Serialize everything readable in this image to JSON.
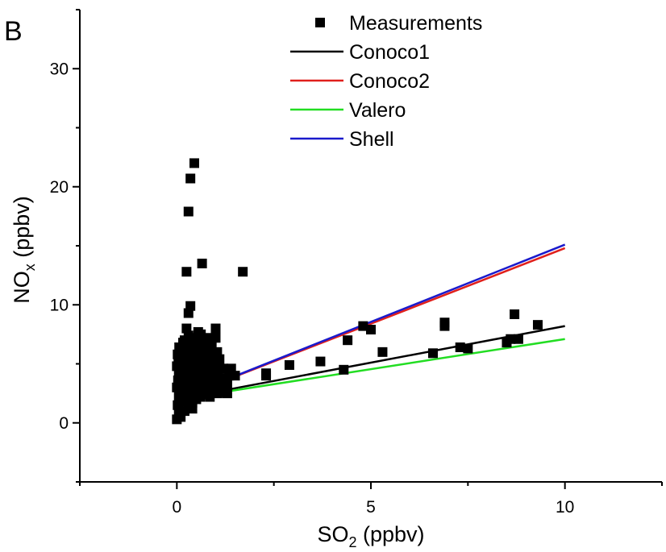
{
  "chart_data": {
    "type": "scatter",
    "panel_label": "B",
    "xlabel": {
      "main": "SO",
      "sub": "2",
      "rest": " (ppbv)"
    },
    "ylabel": {
      "main": "NO",
      "sub": "x",
      "rest": " (ppbv)"
    },
    "xlim": [
      -2.5,
      12.5
    ],
    "ylim": [
      -5,
      35
    ],
    "x_ticks": [
      0,
      5,
      10
    ],
    "x_tick_labels": [
      "0",
      "5",
      "10"
    ],
    "y_ticks": [
      0,
      10,
      20,
      30
    ],
    "y_tick_labels": [
      "0",
      "10",
      "20",
      "30"
    ],
    "legend_position": "top-center",
    "series": [
      {
        "name": "Measurements",
        "kind": "points",
        "color": "#000000",
        "points": [
          [
            0.0,
            0.3
          ],
          [
            0.02,
            1.5
          ],
          [
            0.05,
            2.2
          ],
          [
            0.0,
            3.0
          ],
          [
            0.03,
            3.6
          ],
          [
            0.05,
            4.2
          ],
          [
            0.0,
            4.8
          ],
          [
            0.04,
            5.3
          ],
          [
            0.02,
            5.8
          ],
          [
            0.06,
            6.4
          ],
          [
            0.1,
            0.5
          ],
          [
            0.12,
            1.8
          ],
          [
            0.15,
            2.6
          ],
          [
            0.1,
            3.3
          ],
          [
            0.14,
            3.9
          ],
          [
            0.1,
            4.5
          ],
          [
            0.15,
            5.0
          ],
          [
            0.12,
            5.6
          ],
          [
            0.1,
            6.2
          ],
          [
            0.16,
            6.8
          ],
          [
            0.2,
            1.0
          ],
          [
            0.22,
            2.0
          ],
          [
            0.25,
            2.8
          ],
          [
            0.2,
            3.5
          ],
          [
            0.24,
            4.1
          ],
          [
            0.2,
            4.7
          ],
          [
            0.26,
            5.4
          ],
          [
            0.22,
            6.0
          ],
          [
            0.2,
            7.0
          ],
          [
            0.25,
            8.0
          ],
          [
            0.3,
            1.4
          ],
          [
            0.32,
            2.3
          ],
          [
            0.35,
            3.0
          ],
          [
            0.3,
            3.7
          ],
          [
            0.34,
            4.4
          ],
          [
            0.3,
            5.1
          ],
          [
            0.36,
            5.7
          ],
          [
            0.32,
            6.5
          ],
          [
            0.3,
            7.4
          ],
          [
            0.35,
            2.5
          ],
          [
            0.4,
            1.7
          ],
          [
            0.42,
            2.6
          ],
          [
            0.45,
            3.3
          ],
          [
            0.4,
            4.0
          ],
          [
            0.44,
            4.6
          ],
          [
            0.4,
            5.3
          ],
          [
            0.46,
            6.0
          ],
          [
            0.42,
            6.8
          ],
          [
            0.4,
            1.2
          ],
          [
            0.45,
            3.8
          ],
          [
            0.5,
            2.0
          ],
          [
            0.52,
            2.9
          ],
          [
            0.55,
            3.6
          ],
          [
            0.5,
            4.3
          ],
          [
            0.54,
            5.0
          ],
          [
            0.5,
            5.7
          ],
          [
            0.56,
            6.4
          ],
          [
            0.52,
            7.2
          ],
          [
            0.5,
            2.4
          ],
          [
            0.55,
            4.8
          ],
          [
            0.6,
            2.2
          ],
          [
            0.62,
            3.1
          ],
          [
            0.65,
            3.8
          ],
          [
            0.6,
            4.5
          ],
          [
            0.64,
            5.2
          ],
          [
            0.6,
            6.0
          ],
          [
            0.66,
            6.7
          ],
          [
            0.62,
            7.5
          ],
          [
            0.6,
            2.8
          ],
          [
            0.65,
            4.2
          ],
          [
            0.7,
            2.4
          ],
          [
            0.72,
            3.3
          ],
          [
            0.75,
            4.0
          ],
          [
            0.7,
            4.7
          ],
          [
            0.74,
            5.4
          ],
          [
            0.7,
            6.2
          ],
          [
            0.76,
            7.0
          ],
          [
            0.72,
            3.7
          ],
          [
            0.7,
            2.6
          ],
          [
            0.75,
            5.8
          ],
          [
            0.8,
            2.5
          ],
          [
            0.82,
            3.4
          ],
          [
            0.85,
            4.1
          ],
          [
            0.8,
            4.8
          ],
          [
            0.84,
            5.6
          ],
          [
            0.8,
            6.3
          ],
          [
            0.86,
            7.2
          ],
          [
            0.82,
            3.0
          ],
          [
            0.8,
            5.2
          ],
          [
            0.85,
            2.2
          ],
          [
            0.9,
            2.7
          ],
          [
            0.92,
            3.6
          ],
          [
            0.95,
            4.3
          ],
          [
            0.9,
            5.0
          ],
          [
            0.94,
            5.8
          ],
          [
            0.9,
            6.6
          ],
          [
            0.96,
            3.2
          ],
          [
            0.92,
            4.6
          ],
          [
            0.9,
            2.9
          ],
          [
            0.95,
            5.4
          ],
          [
            1.0,
            2.8
          ],
          [
            1.02,
            3.6
          ],
          [
            1.05,
            4.4
          ],
          [
            1.0,
            5.2
          ],
          [
            1.04,
            6.0
          ],
          [
            1.0,
            7.2
          ],
          [
            1.06,
            3.4
          ],
          [
            1.02,
            4.8
          ],
          [
            1.0,
            8.0
          ],
          [
            1.05,
            2.5
          ],
          [
            1.1,
            3.0
          ],
          [
            1.15,
            3.8
          ],
          [
            1.2,
            4.6
          ],
          [
            1.1,
            5.4
          ],
          [
            1.2,
            2.6
          ],
          [
            1.3,
            3.2
          ],
          [
            1.35,
            4.0
          ],
          [
            1.4,
            4.6
          ],
          [
            1.3,
            2.5
          ],
          [
            1.25,
            3.6
          ],
          [
            0.25,
            12.8
          ],
          [
            0.3,
            17.9
          ],
          [
            0.35,
            20.7
          ],
          [
            0.45,
            22.0
          ],
          [
            0.3,
            9.3
          ],
          [
            0.35,
            9.9
          ],
          [
            0.65,
            13.5
          ],
          [
            0.55,
            7.7
          ],
          [
            1.7,
            12.8
          ],
          [
            1.5,
            4.0
          ],
          [
            2.3,
            4.0
          ],
          [
            2.3,
            4.2
          ],
          [
            2.9,
            4.9
          ],
          [
            3.7,
            5.2
          ],
          [
            4.3,
            4.5
          ],
          [
            4.4,
            7.0
          ],
          [
            4.8,
            8.2
          ],
          [
            5.0,
            7.9
          ],
          [
            5.3,
            6.0
          ],
          [
            6.6,
            5.9
          ],
          [
            6.9,
            8.2
          ],
          [
            6.9,
            8.5
          ],
          [
            7.3,
            6.4
          ],
          [
            7.5,
            6.3
          ],
          [
            8.5,
            6.8
          ],
          [
            8.6,
            7.1
          ],
          [
            8.7,
            9.2
          ],
          [
            8.8,
            7.1
          ],
          [
            9.3,
            8.3
          ],
          [
            0.05,
            1.0
          ]
        ]
      },
      {
        "name": "Conoco1",
        "kind": "line",
        "color": "#000000",
        "x": [
          0,
          10
        ],
        "y": [
          2.0,
          8.2
        ]
      },
      {
        "name": "Conoco2",
        "kind": "line",
        "color": "#e0201c",
        "x": [
          0,
          10
        ],
        "y": [
          2.0,
          14.8
        ]
      },
      {
        "name": "Valero",
        "kind": "line",
        "color": "#22dd22",
        "x": [
          0,
          10
        ],
        "y": [
          2.0,
          7.1
        ]
      },
      {
        "name": "Shell",
        "kind": "line",
        "color": "#1a1acc",
        "x": [
          0,
          10
        ],
        "y": [
          2.0,
          15.1
        ]
      }
    ]
  }
}
